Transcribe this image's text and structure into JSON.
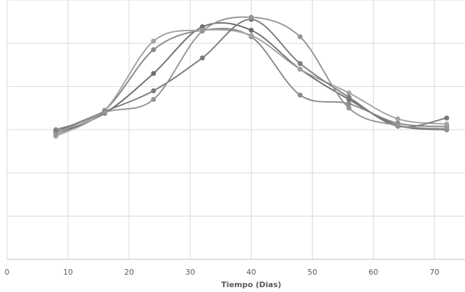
{
  "chart_data": {
    "type": "line",
    "title": "",
    "xlabel": "Tiempo (Dias)",
    "ylabel": "",
    "xlim": [
      0,
      75
    ],
    "ylim": [
      0,
      6
    ],
    "x_ticks": [
      0,
      10,
      20,
      30,
      40,
      50,
      60,
      70
    ],
    "y_gridlines": [
      0,
      1,
      2,
      3,
      4,
      5,
      6
    ],
    "y_tick_labels_shown": false,
    "grid": true,
    "legend": "none",
    "x": [
      8,
      16,
      24,
      32,
      40,
      48,
      56,
      64,
      72
    ],
    "series": [
      {
        "color": "#6e6e6e",
        "values": [
          2.9,
          3.38,
          4.3,
          5.38,
          5.3,
          4.4,
          3.7,
          3.1,
          3.0
        ]
      },
      {
        "color": "#8a8a8a",
        "values": [
          3.0,
          3.45,
          4.85,
          5.3,
          5.15,
          3.8,
          3.6,
          3.15,
          3.07
        ]
      },
      {
        "color": "#a3a3a3",
        "values": [
          2.85,
          3.45,
          5.05,
          5.3,
          5.18,
          4.4,
          3.85,
          3.25,
          3.13
        ]
      },
      {
        "color": "#7b7b7b",
        "values": [
          2.95,
          3.42,
          3.9,
          4.66,
          5.55,
          4.53,
          3.75,
          3.08,
          3.27
        ]
      },
      {
        "color": "#959595",
        "values": [
          2.9,
          3.4,
          3.7,
          5.28,
          5.6,
          5.15,
          3.5,
          3.1,
          3.02
        ]
      }
    ]
  }
}
